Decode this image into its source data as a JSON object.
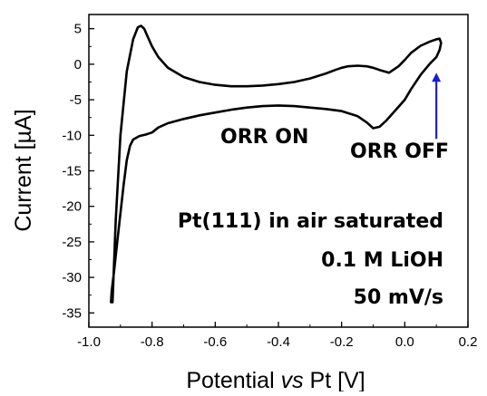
{
  "chart_data": {
    "type": "line",
    "xlabel": "Potential vs Pt [V]",
    "xlabel_parts": {
      "before": "Potential ",
      "italic": "vs",
      "after": " Pt [V]"
    },
    "ylabel": "Current [µA]",
    "xlim": [
      -1.0,
      0.2
    ],
    "ylim": [
      -37,
      7
    ],
    "xticks": [
      -1.0,
      -0.8,
      -0.6,
      -0.4,
      -0.2,
      0.0,
      0.2
    ],
    "xtick_labels": [
      "-1.0",
      "-0.8",
      "-0.6",
      "-0.4",
      "-0.2",
      "0.0",
      "0.2"
    ],
    "yticks": [
      5,
      0,
      -5,
      -10,
      -15,
      -20,
      -25,
      -30,
      -35
    ],
    "ytick_labels": [
      "5",
      "0",
      "-5",
      "-10",
      "-15",
      "-20",
      "-25",
      "-30",
      "-35"
    ],
    "grid": false,
    "series": [
      {
        "color": "#000000",
        "x": [
          -0.925,
          -0.915,
          -0.9,
          -0.88,
          -0.86,
          -0.845,
          -0.835,
          -0.825,
          -0.815,
          -0.8,
          -0.78,
          -0.75,
          -0.7,
          -0.65,
          -0.6,
          -0.55,
          -0.5,
          -0.45,
          -0.4,
          -0.35,
          -0.3,
          -0.25,
          -0.22,
          -0.2,
          -0.18,
          -0.15,
          -0.12,
          -0.1,
          -0.08,
          -0.05,
          -0.02,
          0.0,
          0.02,
          0.05,
          0.08,
          0.1,
          0.11,
          0.115,
          0.11,
          0.1,
          0.08,
          0.05,
          0.02,
          0.0,
          -0.03,
          -0.06,
          -0.08,
          -0.1,
          -0.12,
          -0.15,
          -0.2,
          -0.25,
          -0.3,
          -0.35,
          -0.4,
          -0.45,
          -0.5,
          -0.55,
          -0.6,
          -0.65,
          -0.7,
          -0.75,
          -0.78,
          -0.8,
          -0.82,
          -0.84,
          -0.86,
          -0.87,
          -0.88,
          -0.89,
          -0.9,
          -0.91,
          -0.92,
          -0.928,
          -0.93
        ],
        "y": [
          -33.5,
          -22,
          -10,
          -1,
          3.5,
          5.2,
          5.4,
          5,
          4,
          2.5,
          1,
          -0.5,
          -1.8,
          -2.5,
          -2.9,
          -3.1,
          -3.1,
          -3,
          -2.8,
          -2.5,
          -2,
          -1.3,
          -0.8,
          -0.5,
          -0.3,
          -0.2,
          -0.3,
          -0.5,
          -0.8,
          -1.2,
          -0.3,
          0.6,
          1.6,
          2.6,
          3.2,
          3.5,
          3.6,
          3.0,
          2.0,
          1.0,
          0.1,
          -1.5,
          -3.5,
          -5.0,
          -6.5,
          -8.0,
          -8.8,
          -9.0,
          -8.2,
          -7.3,
          -6.6,
          -6.3,
          -6.1,
          -5.9,
          -5.8,
          -5.9,
          -6.1,
          -6.4,
          -6.8,
          -7.2,
          -7.7,
          -8.3,
          -8.9,
          -9.6,
          -9.9,
          -10.1,
          -10.6,
          -11.5,
          -13.5,
          -17,
          -21,
          -25,
          -29,
          -32,
          -33.5
        ]
      }
    ],
    "annotations": [
      {
        "text": "ORR ON",
        "color": "#d91a1a"
      },
      {
        "text": "ORR OFF",
        "color": "#1a1ad9"
      },
      {
        "text": "Pt(111) in air saturated",
        "color": "#000000"
      },
      {
        "text": "0.1 M LiOH",
        "color": "#000000"
      },
      {
        "text": "50 mV/s",
        "color": "#000000"
      }
    ],
    "arrow": {
      "color": "#1a1ad9",
      "from": [
        0.1,
        -10.5
      ],
      "to": [
        0.1,
        -1.2
      ]
    }
  }
}
